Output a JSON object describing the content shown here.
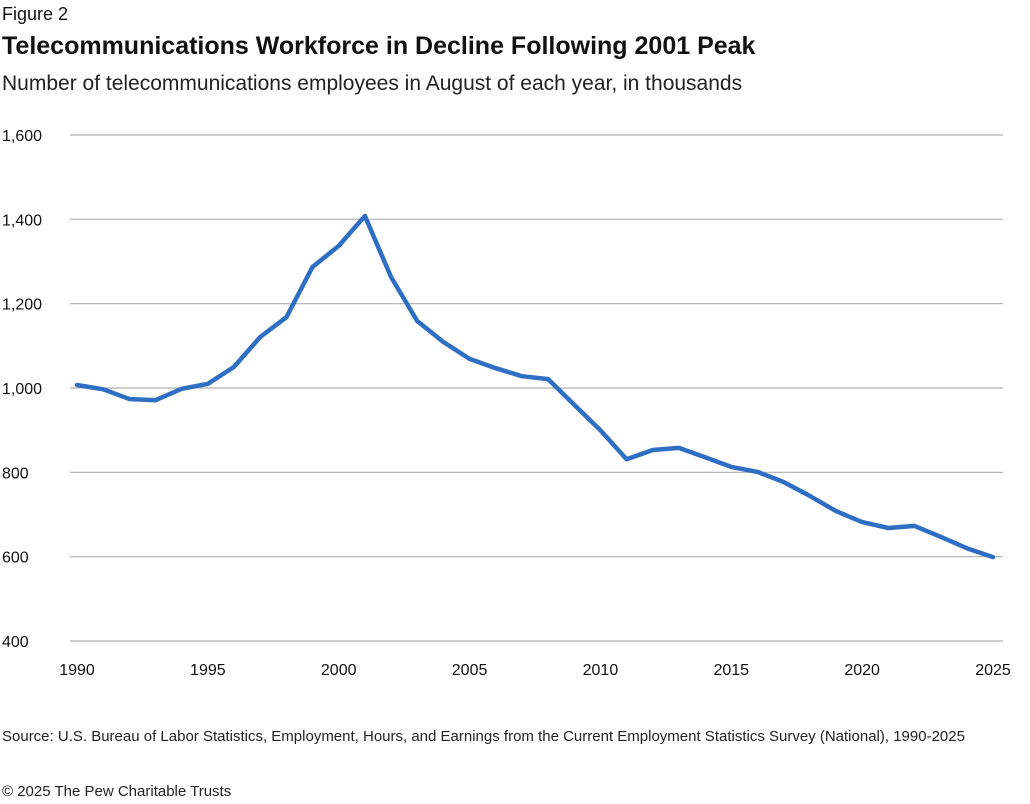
{
  "figure_label": "Figure 2",
  "source": "Source: U.S. Bureau of Labor Statistics, Employment, Hours, and Earnings from the Current Employment Statistics Survey (National), 1990-2025",
  "copyright": "© 2025 The Pew Charitable Trusts",
  "chart_data": {
    "type": "line",
    "title": "Telecommunications Workforce in Decline Following 2001 Peak",
    "subtitle": "Number of telecommunications employees in August of each year, in thousands",
    "xlabel": "",
    "ylabel": "",
    "ylim": [
      400,
      1600
    ],
    "xlim": [
      1990,
      2025
    ],
    "y_ticks": [
      "1,600",
      "1,400",
      "1,200",
      "1,000",
      "800",
      "600",
      "400"
    ],
    "y_tick_values": [
      1600,
      1400,
      1200,
      1000,
      800,
      600,
      400
    ],
    "x_ticks": [
      "1990",
      "1995",
      "2000",
      "2005",
      "2010",
      "2015",
      "2020",
      "2025"
    ],
    "x_tick_values": [
      1990,
      1995,
      2000,
      2005,
      2010,
      2015,
      2020,
      2025
    ],
    "grid": "horizontal",
    "line_color": "#2e6fc4",
    "x": [
      1990,
      1991,
      1992,
      1993,
      1994,
      1995,
      1996,
      1997,
      1998,
      1999,
      2000,
      2001,
      2002,
      2003,
      2004,
      2005,
      2006,
      2007,
      2008,
      2009,
      2010,
      2011,
      2012,
      2013,
      2014,
      2015,
      2016,
      2017,
      2018,
      2019,
      2020,
      2021,
      2022,
      2023,
      2024,
      2025
    ],
    "values": [
      1007,
      997,
      974,
      971,
      998,
      1010,
      1050,
      1121,
      1168,
      1287,
      1337,
      1408,
      1263,
      1159,
      1109,
      1069,
      1047,
      1028,
      1021,
      960,
      900,
      831,
      853,
      858,
      836,
      813,
      801,
      777,
      744,
      708,
      682,
      668,
      673,
      647,
      620,
      599
    ]
  }
}
